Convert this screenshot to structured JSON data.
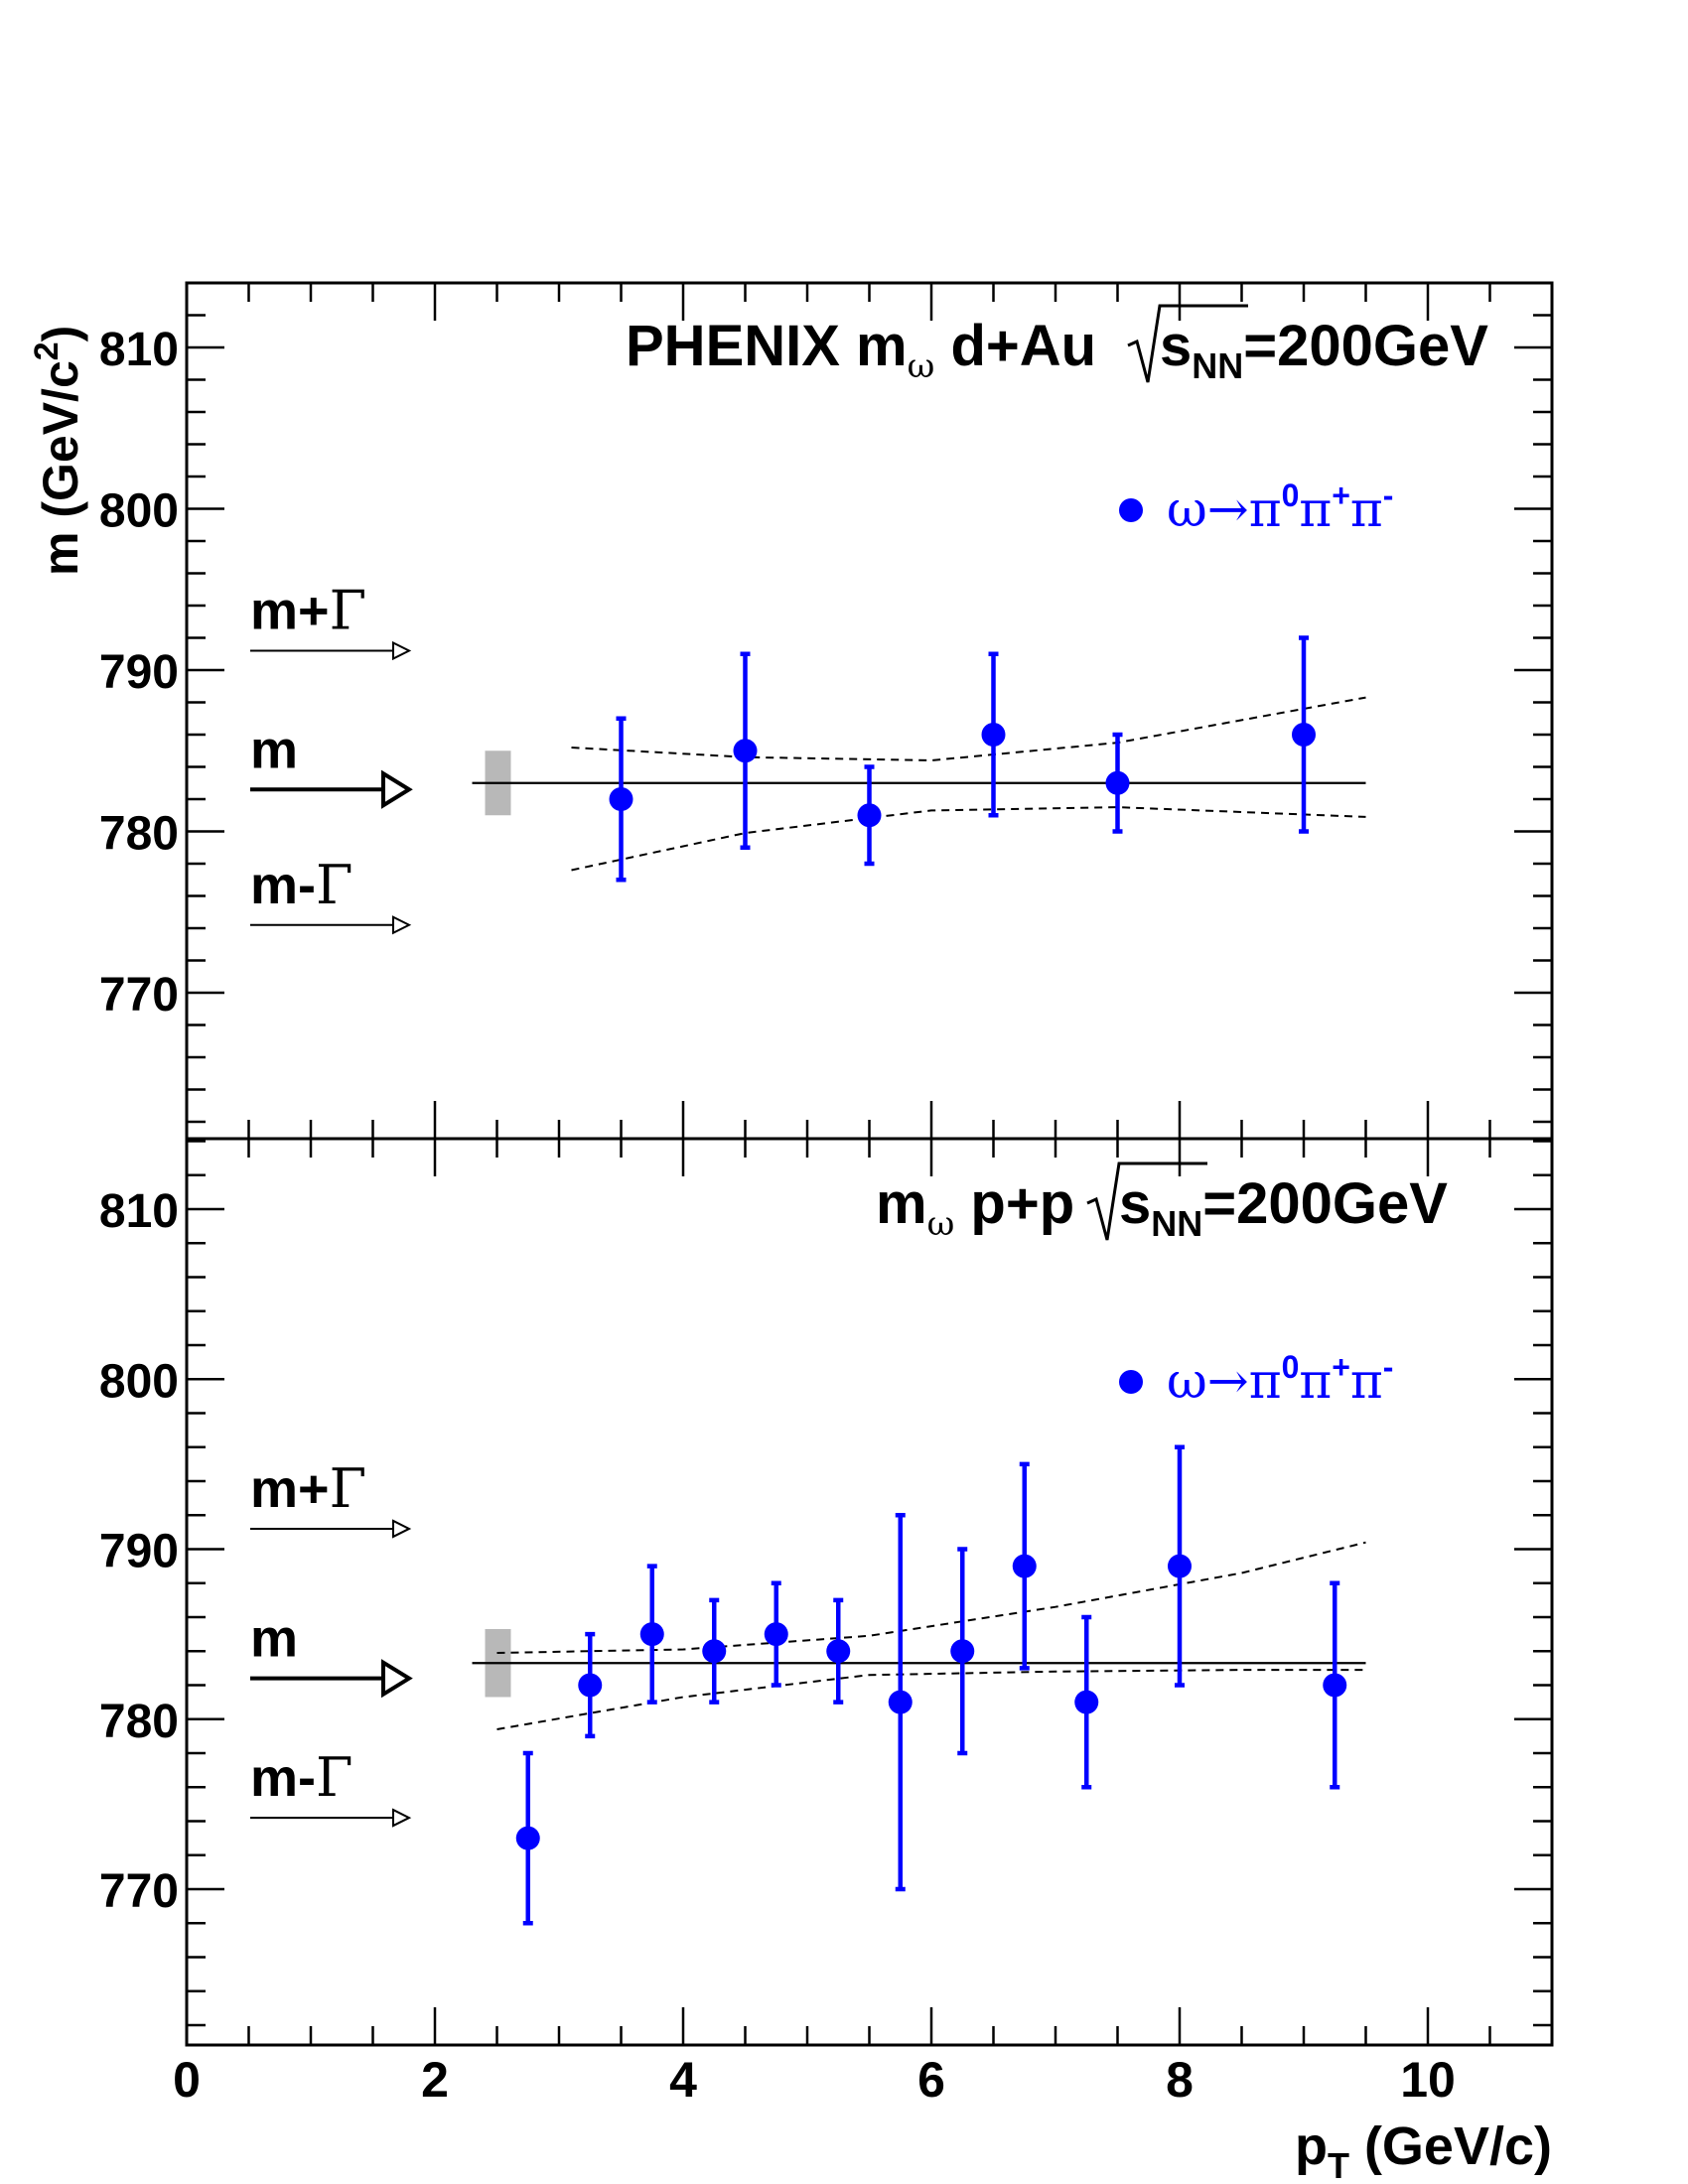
{
  "chart_data": [
    {
      "type": "scatter",
      "title": {
        "prefix": "PHENIX m",
        "sub": "ω",
        "middle": " d+Au ",
        "sqrt_s": "s",
        "sqrt_sub": "NN",
        "energy": "=200GeV"
      },
      "xlim": [
        0,
        11
      ],
      "ylim": [
        761,
        814
      ],
      "yticks": [
        770,
        780,
        790,
        800,
        810
      ],
      "grid": false,
      "legend_position": "top-right",
      "series": [
        {
          "name": {
            "omega": "ω",
            "arrow": "→",
            "pi1": "π",
            "sup1": "0",
            "pi2": "π",
            "sup2": "+",
            "pi3": "π",
            "sup3": "-"
          },
          "color": "#0000ff",
          "x": [
            3.5,
            4.5,
            5.5,
            6.5,
            7.5,
            9.0
          ],
          "y": [
            782,
            785,
            781,
            786,
            783,
            786
          ],
          "err_low": [
            777,
            779,
            778,
            781,
            780,
            780
          ],
          "err_high": [
            787,
            791,
            784,
            791,
            786,
            792
          ]
        }
      ],
      "reference_mass": 783,
      "systematic_band": {
        "x": 2.5,
        "y_low": 781,
        "y_high": 785
      },
      "band_upper": {
        "x": [
          3.1,
          4.5,
          6.0,
          7.5,
          9.5
        ],
        "y": [
          785.2,
          784.6,
          784.4,
          785.5,
          788.3
        ]
      },
      "band_lower": {
        "x": [
          3.1,
          4.5,
          6.0,
          7.5,
          9.5
        ],
        "y": [
          777.6,
          779.9,
          781.3,
          781.5,
          780.9
        ]
      },
      "annotations": [
        {
          "text": "m+",
          "symbol": "Γ",
          "y": 791.2,
          "arrow": "thin"
        },
        {
          "text": "m",
          "symbol": "",
          "y": 782.6,
          "arrow": "thick"
        },
        {
          "text": "m-",
          "symbol": "Γ",
          "y": 774.2,
          "arrow": "thin"
        }
      ],
      "ylabel": {
        "main": "m (GeV/c",
        "sup": "2",
        "end": ")"
      }
    },
    {
      "type": "scatter",
      "title": {
        "prefix": "m",
        "sub": "ω",
        "middle": " p+p ",
        "sqrt_s": "s",
        "sqrt_sub": "NN",
        "energy": "=200GeV"
      },
      "xlim": [
        0,
        11
      ],
      "ylim": [
        761,
        814
      ],
      "yticks": [
        770,
        780,
        790,
        800,
        810
      ],
      "grid": false,
      "legend_position": "top-right",
      "series": [
        {
          "name": {
            "omega": "ω",
            "arrow": "→",
            "pi1": "π",
            "sup1": "0",
            "pi2": "π",
            "sup2": "+",
            "pi3": "π",
            "sup3": "-"
          },
          "color": "#0000ff",
          "x": [
            2.75,
            3.25,
            3.75,
            4.25,
            4.75,
            5.25,
            5.75,
            6.25,
            6.75,
            7.25,
            8.0,
            9.25
          ],
          "y": [
            773,
            782,
            785,
            784,
            785,
            784,
            781,
            784,
            789,
            781,
            789,
            782
          ],
          "err_low": [
            768,
            779,
            781,
            781,
            782,
            781,
            770,
            778,
            783,
            776,
            782,
            776
          ],
          "err_high": [
            778,
            785,
            789,
            787,
            788,
            787,
            792,
            790,
            795,
            786,
            796,
            788
          ]
        }
      ],
      "reference_mass": 783.3,
      "systematic_band": {
        "x": 2.5,
        "y_low": 781.3,
        "y_high": 785.3
      },
      "band_upper": {
        "x": [
          2.5,
          4.0,
          5.5,
          7.0,
          8.5,
          9.5
        ],
        "y": [
          783.9,
          784.1,
          784.9,
          786.6,
          788.6,
          790.4
        ]
      },
      "band_lower": {
        "x": [
          2.5,
          4.0,
          5.5,
          7.0,
          8.5,
          9.5
        ],
        "y": [
          779.4,
          781.3,
          782.6,
          782.8,
          782.9,
          782.9
        ]
      },
      "annotations": [
        {
          "text": "m+",
          "symbol": "Γ",
          "y": 791.2,
          "arrow": "thin"
        },
        {
          "text": "m",
          "symbol": "",
          "y": 782.4,
          "arrow": "thick"
        },
        {
          "text": "m-",
          "symbol": "Γ",
          "y": 774.2,
          "arrow": "thin"
        }
      ]
    }
  ],
  "xaxis": {
    "ticks": [
      "0",
      "2",
      "4",
      "6",
      "8",
      "10"
    ],
    "label": {
      "p": "p",
      "sub": "T",
      "rest": " (GeV/c)"
    }
  },
  "colors": {
    "data": "#0000ff",
    "band": "#b8b8b8",
    "axis": "#000000"
  }
}
